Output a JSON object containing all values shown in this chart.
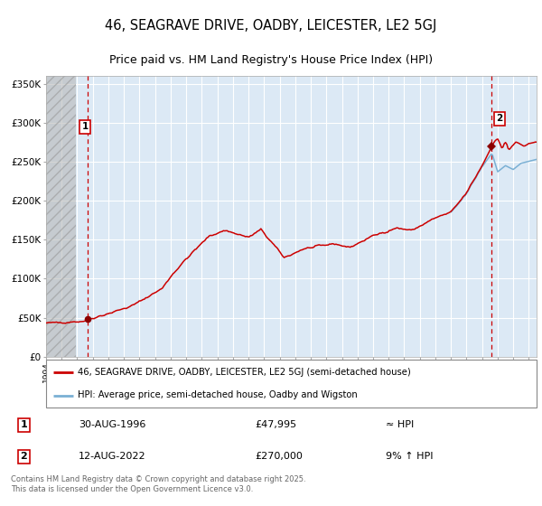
{
  "title1": "46, SEAGRAVE DRIVE, OADBY, LEICESTER, LE2 5GJ",
  "title2": "Price paid vs. HM Land Registry's House Price Index (HPI)",
  "legend_line1": "46, SEAGRAVE DRIVE, OADBY, LEICESTER, LE2 5GJ (semi-detached house)",
  "legend_line2": "HPI: Average price, semi-detached house, Oadby and Wigston",
  "annotation1_date": "30-AUG-1996",
  "annotation1_price": "£47,995",
  "annotation1_hpi": "≈ HPI",
  "annotation2_date": "12-AUG-2022",
  "annotation2_price": "£270,000",
  "annotation2_hpi": "9% ↑ HPI",
  "copyright": "Contains HM Land Registry data © Crown copyright and database right 2025.\nThis data is licensed under the Open Government Licence v3.0.",
  "sale1_year": 1996.66,
  "sale1_value": 47995,
  "sale2_year": 2022.62,
  "sale2_value": 270000,
  "xmin": 1994.0,
  "xmax": 2025.5,
  "ymin": 0,
  "ymax": 360000,
  "hatch_xmin": 1994.0,
  "hatch_xmax": 1995.9,
  "background_color": "#dce9f5",
  "red_line_color": "#cc0000",
  "blue_line_color": "#7ab0d4",
  "grid_color": "#ffffff",
  "title_fontsize": 10.5,
  "subtitle_fontsize": 9.0
}
